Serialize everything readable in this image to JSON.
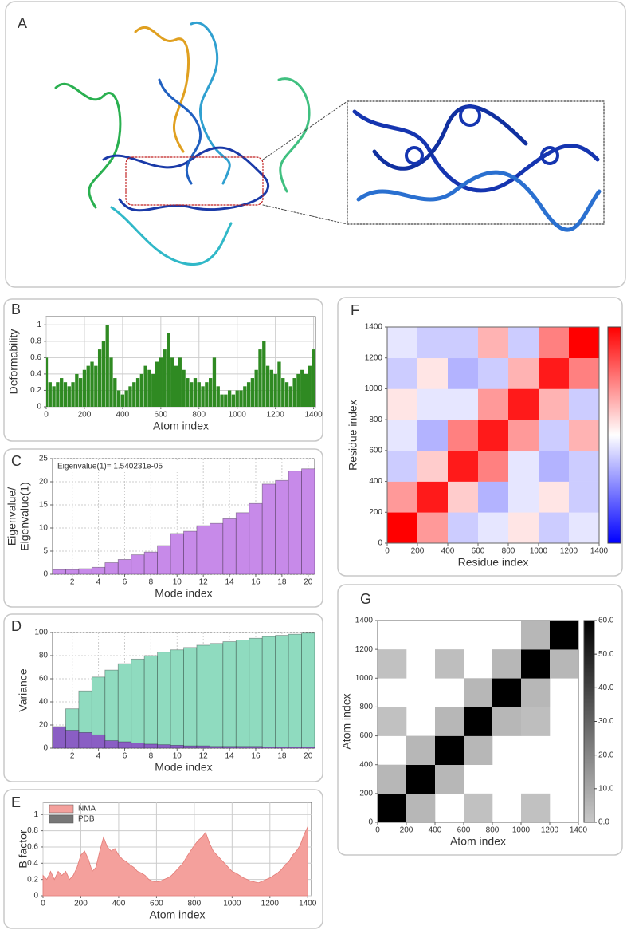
{
  "panel_labels": [
    "A",
    "B",
    "C",
    "D",
    "E",
    "F",
    "G"
  ],
  "chart_data": [
    {
      "type": "bar",
      "ylabel": "Deformability",
      "xlabel": "Atom index",
      "color": "#2f8a22",
      "grid": true,
      "xlim": [
        0,
        1410
      ],
      "ylim": [
        0,
        1.1
      ],
      "xticks": [
        0,
        200,
        400,
        600,
        800,
        1000,
        1200,
        1400
      ],
      "yticks": [
        0,
        0.2,
        0.4,
        0.6,
        0.8,
        1
      ],
      "x": [
        0,
        20,
        40,
        60,
        80,
        100,
        120,
        140,
        160,
        180,
        200,
        220,
        240,
        260,
        280,
        300,
        320,
        340,
        360,
        380,
        400,
        420,
        440,
        460,
        480,
        500,
        520,
        540,
        560,
        580,
        600,
        620,
        640,
        660,
        680,
        700,
        720,
        740,
        760,
        780,
        800,
        820,
        840,
        860,
        880,
        900,
        920,
        940,
        960,
        980,
        1000,
        1020,
        1040,
        1060,
        1080,
        1100,
        1120,
        1140,
        1160,
        1180,
        1200,
        1220,
        1240,
        1260,
        1280,
        1300,
        1320,
        1340,
        1360,
        1380,
        1400
      ],
      "values": [
        0.6,
        0.3,
        0.25,
        0.3,
        0.35,
        0.3,
        0.25,
        0.3,
        0.4,
        0.35,
        0.45,
        0.5,
        0.55,
        0.5,
        0.7,
        0.8,
        1.0,
        0.6,
        0.35,
        0.2,
        0.15,
        0.2,
        0.25,
        0.3,
        0.35,
        0.4,
        0.5,
        0.45,
        0.4,
        0.55,
        0.6,
        0.7,
        0.9,
        0.6,
        0.5,
        0.6,
        0.45,
        0.35,
        0.3,
        0.35,
        0.3,
        0.25,
        0.3,
        0.35,
        0.6,
        0.25,
        0.15,
        0.15,
        0.2,
        0.15,
        0.2,
        0.2,
        0.25,
        0.3,
        0.35,
        0.45,
        0.7,
        0.8,
        0.5,
        0.45,
        0.4,
        0.55,
        0.35,
        0.3,
        0.25,
        0.35,
        0.4,
        0.45,
        0.4,
        0.5,
        0.7
      ]
    },
    {
      "type": "bar",
      "ylabel": [
        "Eigenvalue/",
        "Eigenvalue(1)"
      ],
      "xlabel": "Mode index",
      "annotation": "Eigenvalue(1)= 1.540231e-05",
      "grid": true,
      "xlim": [
        0.5,
        20.5
      ],
      "ylim": [
        0,
        25
      ],
      "xticks": [
        2,
        4,
        6,
        8,
        10,
        12,
        14,
        16,
        18,
        20
      ],
      "yticks": [
        0,
        5,
        10,
        15,
        20,
        25
      ],
      "x": [
        1,
        2,
        3,
        4,
        5,
        6,
        7,
        8,
        9,
        10,
        11,
        12,
        13,
        14,
        15,
        16,
        17,
        18,
        19,
        20
      ],
      "series": [
        {
          "color": "#c78ae9",
          "values": [
            1,
            1,
            1.2,
            1.5,
            2.5,
            3.2,
            4.2,
            4.8,
            6.2,
            8.8,
            9.3,
            10.5,
            11,
            12,
            13.3,
            15.3,
            19.5,
            20.3,
            22.3,
            22.8
          ]
        }
      ]
    },
    {
      "type": "bar",
      "ylabel": "Variance",
      "xlabel": "Mode index",
      "grid": true,
      "xlim": [
        0.5,
        20.5
      ],
      "ylim": [
        0,
        100
      ],
      "xticks": [
        2,
        4,
        6,
        8,
        10,
        12,
        14,
        16,
        18,
        20
      ],
      "yticks": [
        0,
        20,
        40,
        60,
        80,
        100
      ],
      "x": [
        1,
        2,
        3,
        4,
        5,
        6,
        7,
        8,
        9,
        10,
        11,
        12,
        13,
        14,
        15,
        16,
        17,
        18,
        19,
        20
      ],
      "series": [
        {
          "color": "#8fdbbf",
          "values": [
            18.5,
            34,
            49.5,
            61.5,
            67.5,
            73,
            77,
            80,
            83,
            85,
            87,
            89,
            90.5,
            92,
            93.5,
            95,
            96.5,
            97.5,
            98.5,
            99.5
          ]
        },
        {
          "color": "#8a5ec4",
          "values": [
            18.5,
            15.5,
            13.5,
            11.5,
            6.5,
            5.5,
            4.5,
            3.5,
            3,
            2.5,
            2,
            2,
            1.5,
            1.5,
            1.5,
            1.5,
            1,
            1,
            1,
            1
          ]
        }
      ]
    },
    {
      "type": "area",
      "ylabel": "B factor",
      "xlabel": "Atom index",
      "grid": true,
      "xlim": [
        0,
        1420
      ],
      "ylim": [
        0,
        1.15
      ],
      "xticks": [
        0,
        200,
        400,
        600,
        800,
        1000,
        1200,
        1400
      ],
      "yticks": [
        0,
        0.2,
        0.4,
        0.6,
        0.8,
        1
      ],
      "x": [
        0,
        20,
        40,
        60,
        80,
        100,
        120,
        140,
        160,
        180,
        200,
        220,
        240,
        260,
        280,
        300,
        320,
        340,
        360,
        380,
        400,
        420,
        440,
        460,
        480,
        500,
        520,
        540,
        560,
        580,
        600,
        620,
        640,
        660,
        680,
        700,
        720,
        740,
        760,
        780,
        800,
        820,
        840,
        860,
        880,
        900,
        920,
        940,
        960,
        980,
        1000,
        1020,
        1040,
        1060,
        1080,
        1100,
        1120,
        1140,
        1160,
        1180,
        1200,
        1220,
        1240,
        1260,
        1280,
        1300,
        1320,
        1340,
        1360,
        1380,
        1400
      ],
      "series": [
        {
          "name": "NMA",
          "color": "#f4a09c",
          "values": [
            0.25,
            0.2,
            0.3,
            0.2,
            0.3,
            0.25,
            0.3,
            0.2,
            0.25,
            0.35,
            0.5,
            0.55,
            0.45,
            0.3,
            0.35,
            0.55,
            0.72,
            0.6,
            0.55,
            0.58,
            0.5,
            0.45,
            0.42,
            0.38,
            0.35,
            0.3,
            0.28,
            0.25,
            0.2,
            0.18,
            0.17,
            0.18,
            0.2,
            0.22,
            0.25,
            0.3,
            0.35,
            0.4,
            0.48,
            0.55,
            0.62,
            0.68,
            0.72,
            0.78,
            0.65,
            0.55,
            0.5,
            0.45,
            0.4,
            0.35,
            0.3,
            0.28,
            0.25,
            0.22,
            0.2,
            0.18,
            0.17,
            0.16,
            0.18,
            0.2,
            0.22,
            0.25,
            0.28,
            0.32,
            0.38,
            0.42,
            0.5,
            0.55,
            0.62,
            0.75,
            0.85
          ]
        },
        {
          "name": "PDB",
          "color": "#777777",
          "values": [
            null,
            null,
            null,
            null,
            null,
            null,
            null,
            null,
            null,
            null,
            null,
            null,
            null,
            null,
            null,
            null,
            null,
            null,
            null,
            null,
            null,
            null,
            null,
            null,
            null,
            null,
            null,
            null,
            null,
            null,
            null,
            null,
            null,
            null,
            null,
            null,
            null,
            null,
            null,
            null,
            null,
            null,
            null,
            null,
            null,
            null,
            null,
            null,
            null,
            null,
            null,
            null,
            null,
            null,
            null,
            null,
            null,
            null,
            null,
            null,
            null,
            null,
            null,
            null,
            null,
            null,
            null,
            null,
            null,
            null,
            null
          ]
        }
      ]
    },
    {
      "type": "heatmap",
      "ylabel": "Residue index",
      "xlabel": "Residue index",
      "palette": "bwr",
      "xlim": [
        0,
        1400
      ],
      "ylim": [
        0,
        1400
      ],
      "zlim": [
        -1,
        1
      ],
      "xticks": [
        0,
        200,
        400,
        600,
        800,
        1000,
        1200,
        1400
      ],
      "yticks": [
        0,
        200,
        400,
        600,
        800,
        1000,
        1200,
        1400
      ],
      "matrix": [
        [
          1,
          0.4,
          -0.2,
          -0.1,
          0.1,
          -0.2,
          -0.1
        ],
        [
          0.4,
          0.9,
          0.2,
          -0.3,
          -0.1,
          0.1,
          -0.2
        ],
        [
          -0.2,
          0.2,
          0.9,
          0.5,
          -0.1,
          -0.3,
          -0.2
        ],
        [
          -0.1,
          -0.3,
          0.5,
          0.9,
          0.4,
          -0.2,
          0.3
        ],
        [
          0.1,
          -0.1,
          -0.1,
          0.4,
          0.9,
          0.3,
          -0.2
        ],
        [
          -0.2,
          0.1,
          -0.3,
          -0.2,
          0.3,
          0.9,
          0.5
        ],
        [
          -0.1,
          -0.2,
          -0.2,
          0.3,
          -0.2,
          0.5,
          1
        ]
      ]
    },
    {
      "type": "heatmap",
      "ylabel": "Atom index",
      "xlabel": "Atom index",
      "palette": "gray",
      "xlim": [
        0,
        1400
      ],
      "ylim": [
        0,
        1400
      ],
      "zlim": [
        0,
        60
      ],
      "xticks": [
        0,
        200,
        400,
        600,
        800,
        1000,
        1200,
        1400
      ],
      "yticks": [
        0,
        200,
        400,
        600,
        800,
        1000,
        1200,
        1400
      ],
      "zticks": [
        {
          "value": 0,
          "label": "0.0"
        },
        {
          "value": 10,
          "label": "10.0"
        },
        {
          "value": 20,
          "label": "20.0"
        },
        {
          "value": 30,
          "label": "30.0"
        },
        {
          "value": 40,
          "label": "40.0"
        },
        {
          "value": 50,
          "label": "50.0"
        },
        {
          "value": 60,
          "label": "60.0"
        }
      ],
      "matrix": [
        [
          60,
          5,
          null,
          2,
          null,
          2,
          null
        ],
        [
          5,
          60,
          5,
          null,
          null,
          null,
          null
        ],
        [
          null,
          5,
          60,
          5,
          null,
          null,
          null
        ],
        [
          2,
          null,
          5,
          60,
          5,
          3,
          null
        ],
        [
          null,
          null,
          null,
          5,
          60,
          5,
          null
        ],
        [
          2,
          null,
          3,
          null,
          5,
          60,
          5
        ],
        [
          null,
          null,
          null,
          null,
          null,
          5,
          60
        ]
      ]
    }
  ]
}
